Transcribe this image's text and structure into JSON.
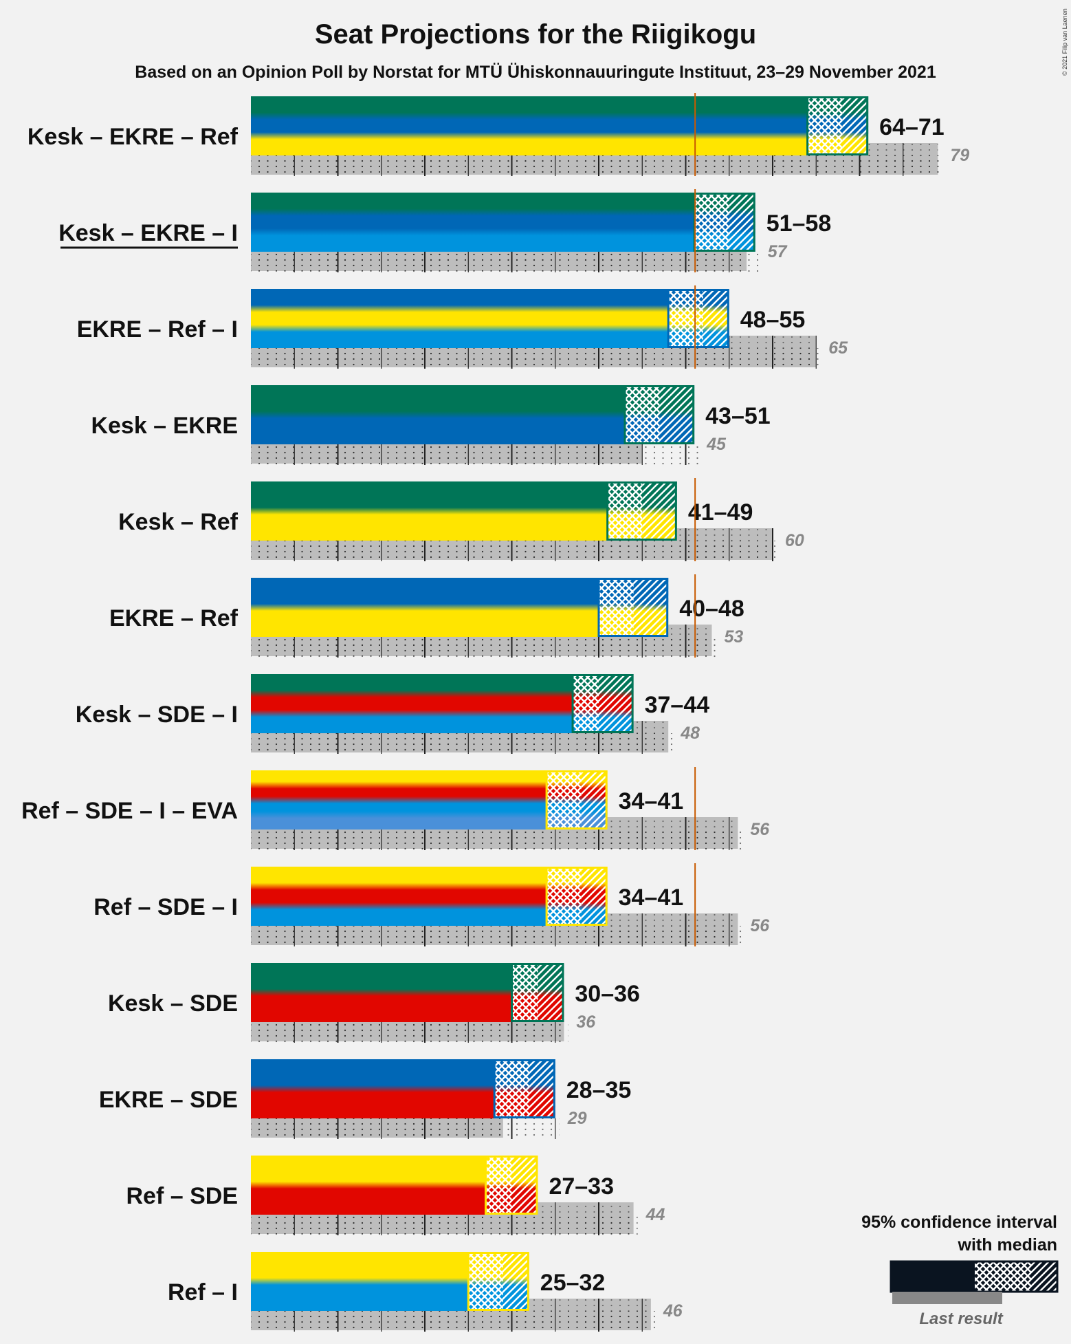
{
  "title": "Seat Projections for the Riigikogu",
  "subtitle": "Based on an Opinion Poll by Norstat for MTÜ Ühiskonnauuringute Instituut, 23–29 November 2021",
  "credit": "© 2021 Filip van Laenen",
  "legend": {
    "line1": "95% confidence interval",
    "line2": "with median",
    "last_result": "Last result"
  },
  "colors": {
    "Kesk": "#007557",
    "EKRE": "#0067b6",
    "Ref": "#ffe500",
    "I": "#0093dd",
    "SDE": "#e10600",
    "EVA": "#4a90d9",
    "majority_line": "#c85a00",
    "last_result_bar": "#aaaaaa"
  },
  "chart_data": {
    "type": "bar",
    "majority": 51,
    "xlim": [
      0,
      101
    ],
    "grid": true,
    "coalitions": [
      {
        "label": "Kesk – EKRE – Ref",
        "parties": [
          "Kesk",
          "EKRE",
          "Ref"
        ],
        "low": 64,
        "median": 68,
        "high": 71,
        "range_label": "64–71",
        "last": 79,
        "last_label": "79",
        "underline": false
      },
      {
        "label": "Kesk – EKRE – I",
        "parties": [
          "Kesk",
          "EKRE",
          "I"
        ],
        "low": 51,
        "median": 55,
        "high": 58,
        "range_label": "51–58",
        "last": 57,
        "last_label": "57",
        "underline": true
      },
      {
        "label": "EKRE – Ref – I",
        "parties": [
          "EKRE",
          "Ref",
          "I"
        ],
        "low": 48,
        "median": 52,
        "high": 55,
        "range_label": "48–55",
        "last": 65,
        "last_label": "65",
        "underline": false
      },
      {
        "label": "Kesk – EKRE",
        "parties": [
          "Kesk",
          "EKRE"
        ],
        "low": 43,
        "median": 47,
        "high": 51,
        "range_label": "43–51",
        "last": 45,
        "last_label": "45",
        "underline": false
      },
      {
        "label": "Kesk – Ref",
        "parties": [
          "Kesk",
          "Ref"
        ],
        "low": 41,
        "median": 45,
        "high": 49,
        "range_label": "41–49",
        "last": 60,
        "last_label": "60",
        "underline": false
      },
      {
        "label": "EKRE – Ref",
        "parties": [
          "EKRE",
          "Ref"
        ],
        "low": 40,
        "median": 44,
        "high": 48,
        "range_label": "40–48",
        "last": 53,
        "last_label": "53",
        "underline": false
      },
      {
        "label": "Kesk – SDE – I",
        "parties": [
          "Kesk",
          "SDE",
          "I"
        ],
        "low": 37,
        "median": 40,
        "high": 44,
        "range_label": "37–44",
        "last": 48,
        "last_label": "48",
        "underline": false
      },
      {
        "label": "Ref – SDE – I – EVA",
        "parties": [
          "Ref",
          "SDE",
          "I",
          "EVA"
        ],
        "low": 34,
        "median": 38,
        "high": 41,
        "range_label": "34–41",
        "last": 56,
        "last_label": "56",
        "underline": false
      },
      {
        "label": "Ref – SDE – I",
        "parties": [
          "Ref",
          "SDE",
          "I"
        ],
        "low": 34,
        "median": 38,
        "high": 41,
        "range_label": "34–41",
        "last": 56,
        "last_label": "56",
        "underline": false
      },
      {
        "label": "Kesk – SDE",
        "parties": [
          "Kesk",
          "SDE"
        ],
        "low": 30,
        "median": 33,
        "high": 36,
        "range_label": "30–36",
        "last": 36,
        "last_label": "36",
        "underline": false
      },
      {
        "label": "EKRE – SDE",
        "parties": [
          "EKRE",
          "SDE"
        ],
        "low": 28,
        "median": 32,
        "high": 35,
        "range_label": "28–35",
        "last": 29,
        "last_label": "29",
        "underline": false
      },
      {
        "label": "Ref – SDE",
        "parties": [
          "Ref",
          "SDE"
        ],
        "low": 27,
        "median": 30,
        "high": 33,
        "range_label": "27–33",
        "last": 44,
        "last_label": "44",
        "underline": false
      },
      {
        "label": "Ref – I",
        "parties": [
          "Ref",
          "I"
        ],
        "low": 25,
        "median": 29,
        "high": 32,
        "range_label": "25–32",
        "last": 46,
        "last_label": "46",
        "underline": false
      }
    ]
  }
}
